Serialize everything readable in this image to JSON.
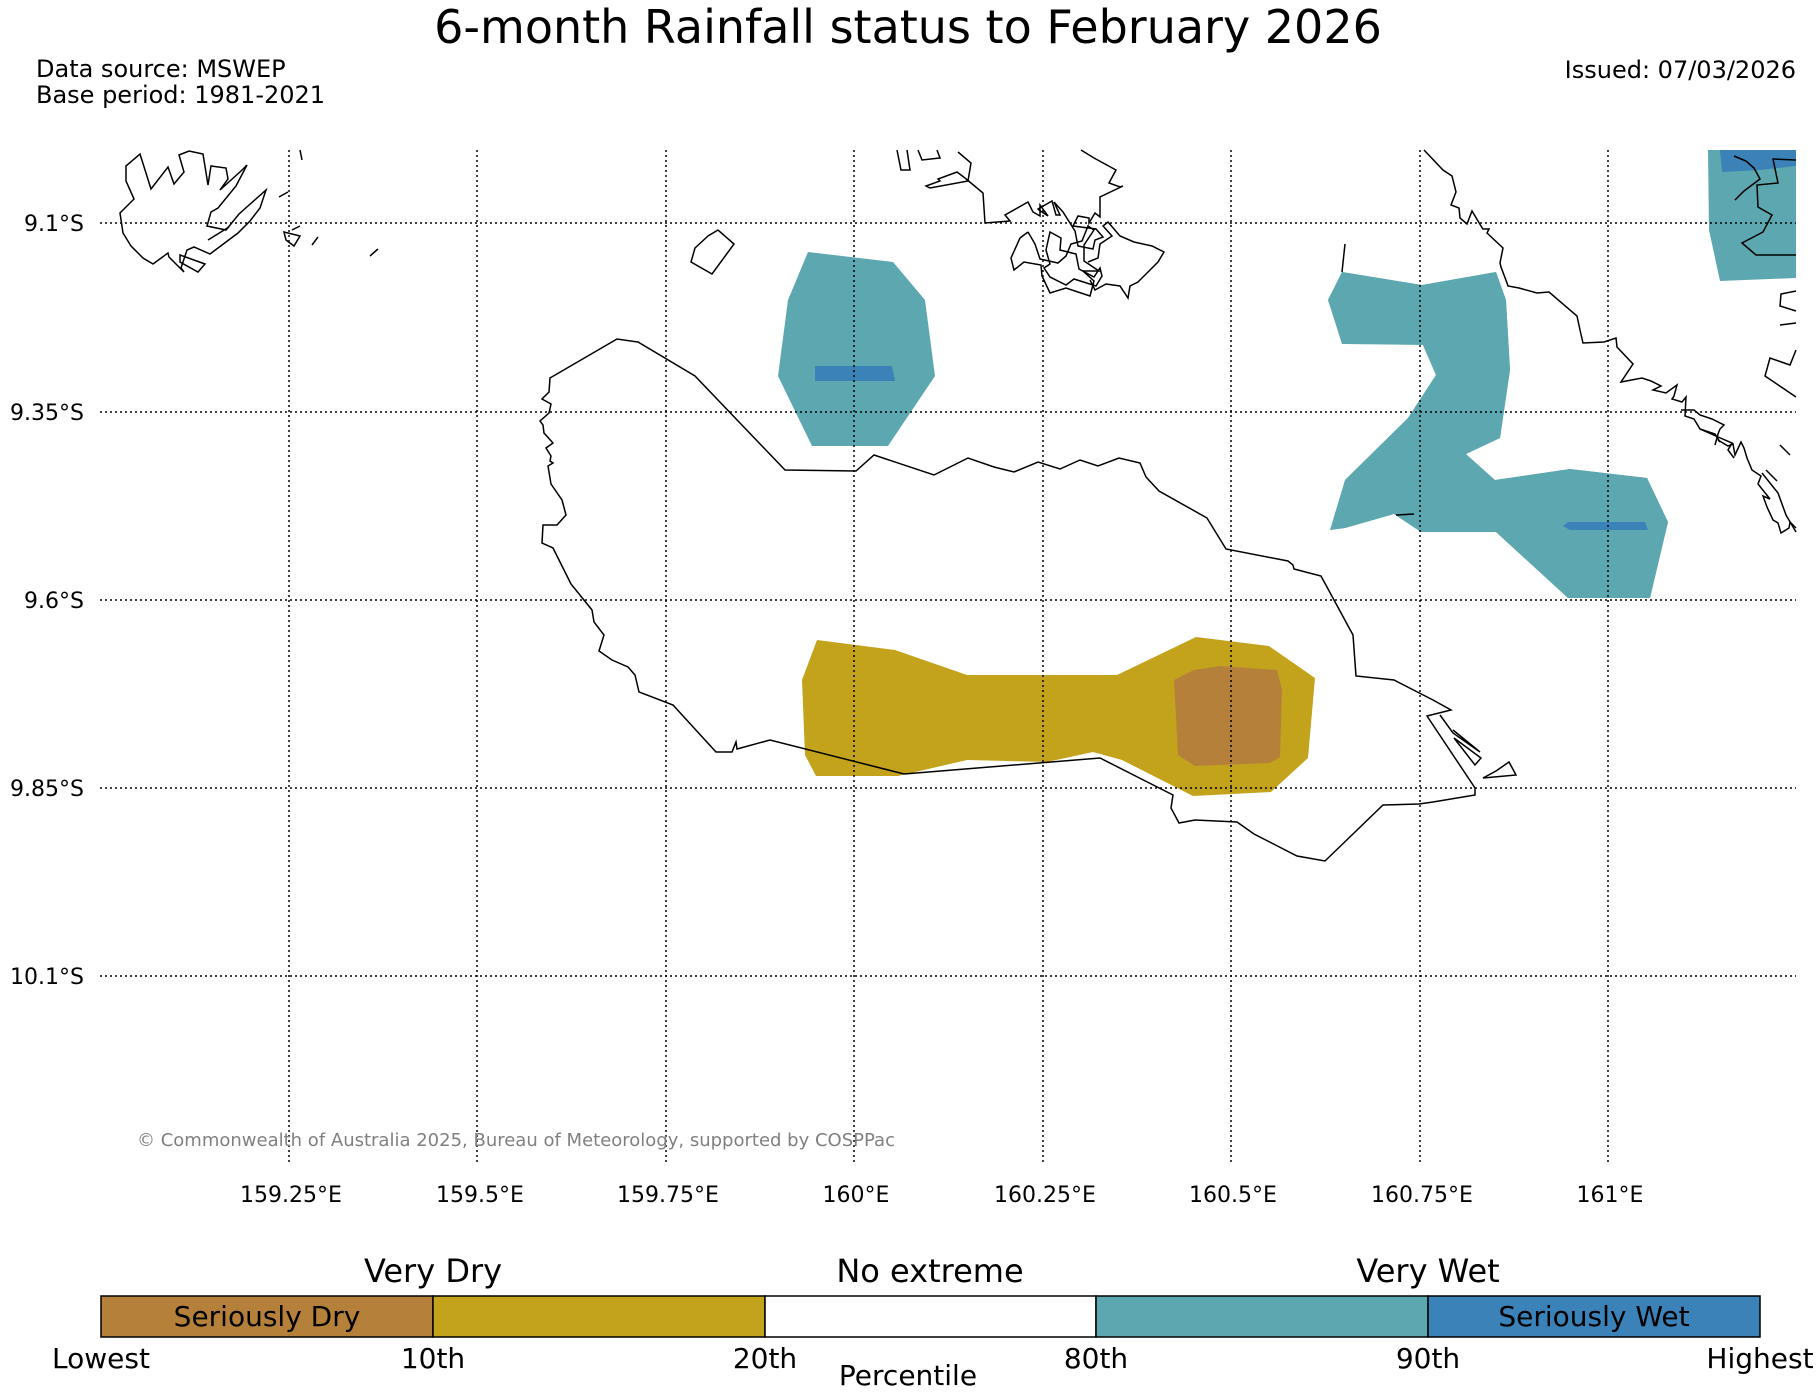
{
  "title": "6-month Rainfall status to February 2026",
  "data_source": "Data source: MSWEP",
  "base_period": "Base period: 1981-2021",
  "issued": "Issued: 07/03/2026",
  "copyright": "© Commonwealth of Australia 2025, Bureau of Meteorology, supported by COSPPac",
  "map": {
    "lat_labels": [
      "9.1°S",
      "9.35°S",
      "9.6°S",
      "9.85°S",
      "10.1°S"
    ],
    "lon_labels": [
      "159.25°E",
      "159.5°E",
      "159.75°E",
      "160°E",
      "160.25°E",
      "160.5°E",
      "160.75°E",
      "161°E"
    ]
  },
  "legend": {
    "categories": [
      "Very Dry",
      "No extreme",
      "Very Wet"
    ],
    "bins": [
      {
        "label": "Seriously Dry",
        "color": "#b5803a"
      },
      {
        "label": "",
        "color": "#c4a31c"
      },
      {
        "label": "",
        "color": "#ffffff"
      },
      {
        "label": "",
        "color": "#5da8b0"
      },
      {
        "label": "Seriously Wet",
        "color": "#3a82b8"
      }
    ],
    "ticks": [
      "Lowest",
      "10th",
      "20th",
      "80th",
      "90th",
      "Highest"
    ],
    "axis_label": "Percentile"
  },
  "colors": {
    "seriously_dry": "#b5803a",
    "very_dry": "#c4a31c",
    "very_wet": "#5da8b0",
    "seriously_wet": "#3a82b8"
  }
}
